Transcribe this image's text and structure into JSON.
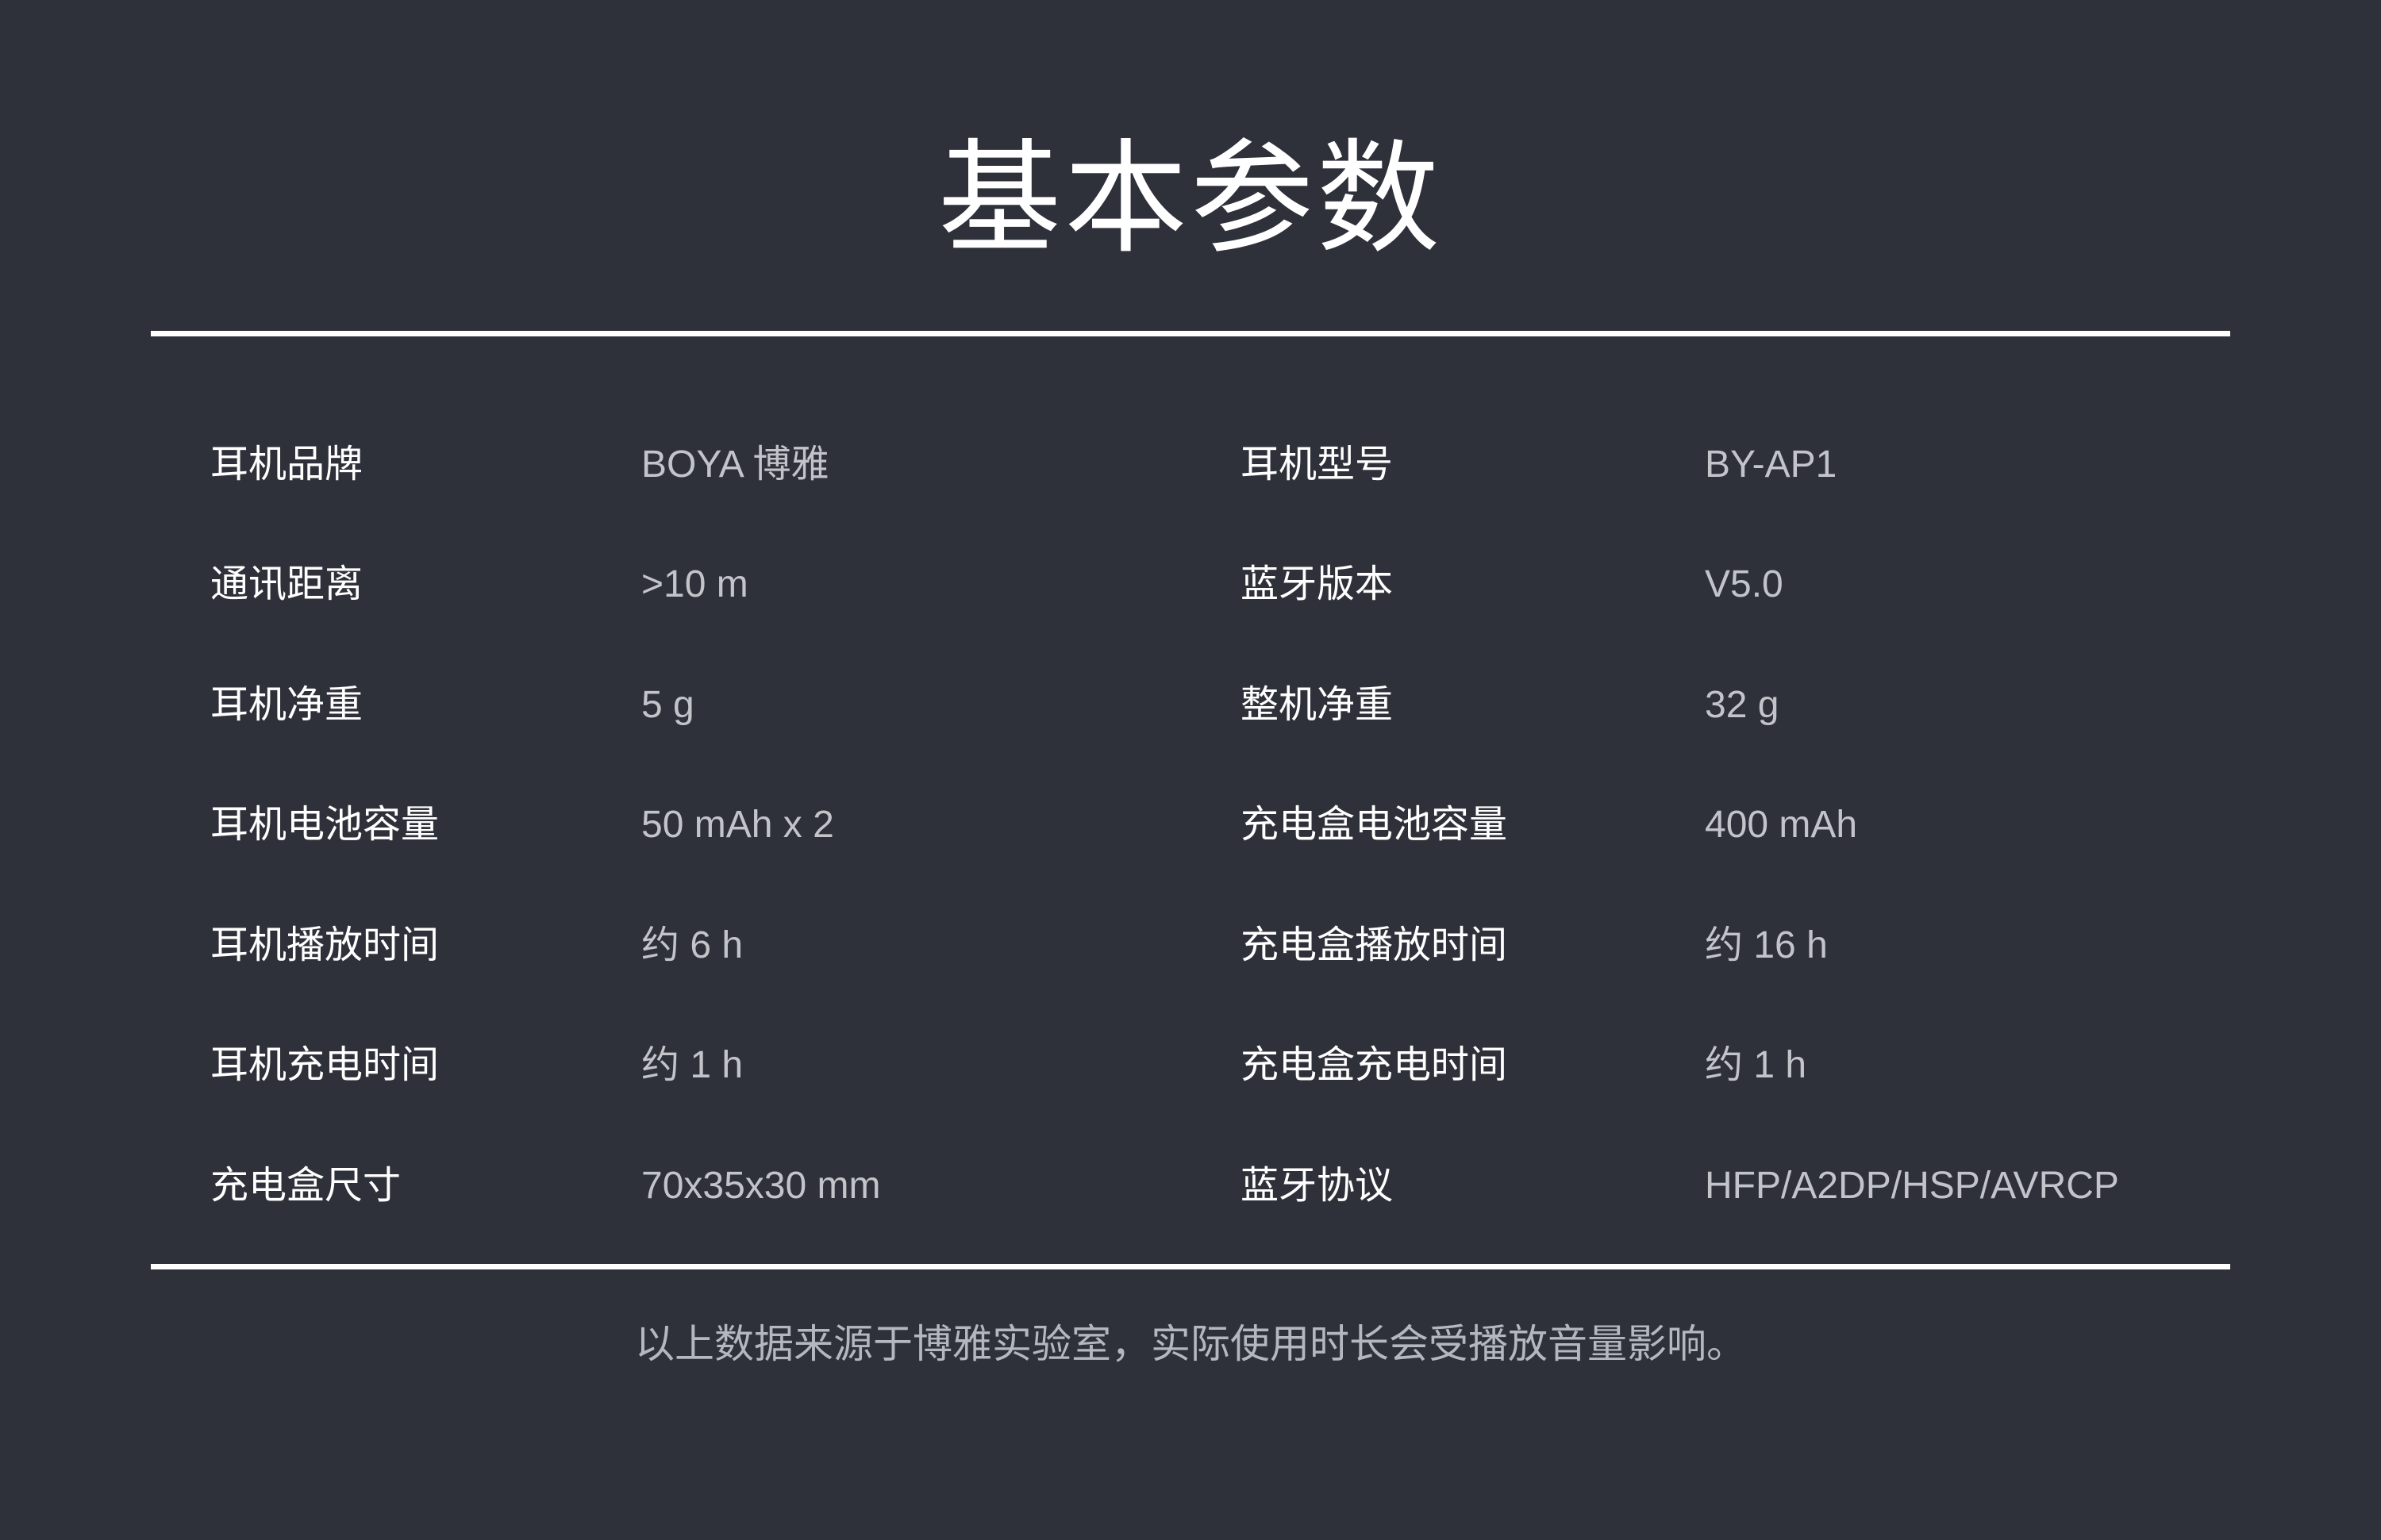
{
  "page": {
    "background_color": "#2F313A",
    "divider_color": "#FFFFFF",
    "label_color": "#FFFFFF",
    "value_color": "#C2C4CA",
    "footer_color": "#B4B7BD",
    "title_color": "#FFFFFF"
  },
  "title": "基本参数",
  "spec_table": {
    "rows": [
      {
        "left_label": "耳机品牌",
        "left_value": "BOYA 博雅",
        "right_label": "耳机型号",
        "right_value": "BY-AP1"
      },
      {
        "left_label": "通讯距离",
        "left_value": ">10 m",
        "right_label": "蓝牙版本",
        "right_value": "V5.0"
      },
      {
        "left_label": "耳机净重",
        "left_value": "5 g",
        "right_label": "整机净重",
        "right_value": "32 g"
      },
      {
        "left_label": "耳机电池容量",
        "left_value": "50 mAh x 2",
        "right_label": "充电盒电池容量",
        "right_value": "400 mAh"
      },
      {
        "left_label": "耳机播放时间",
        "left_value": "约 6 h",
        "right_label": "充电盒播放时间",
        "right_value": "约 16 h"
      },
      {
        "left_label": "耳机充电时间",
        "left_value": "约 1 h",
        "right_label": "充电盒充电时间",
        "right_value": "约 1 h"
      },
      {
        "left_label": "充电盒尺寸",
        "left_value": "70x35x30 mm",
        "right_label": "蓝牙协议",
        "right_value": "HFP/A2DP/HSP/AVRCP"
      }
    ]
  },
  "footer": {
    "note": "以上数据来源于博雅实验室，实际使用时长会受播放音量影响。"
  }
}
